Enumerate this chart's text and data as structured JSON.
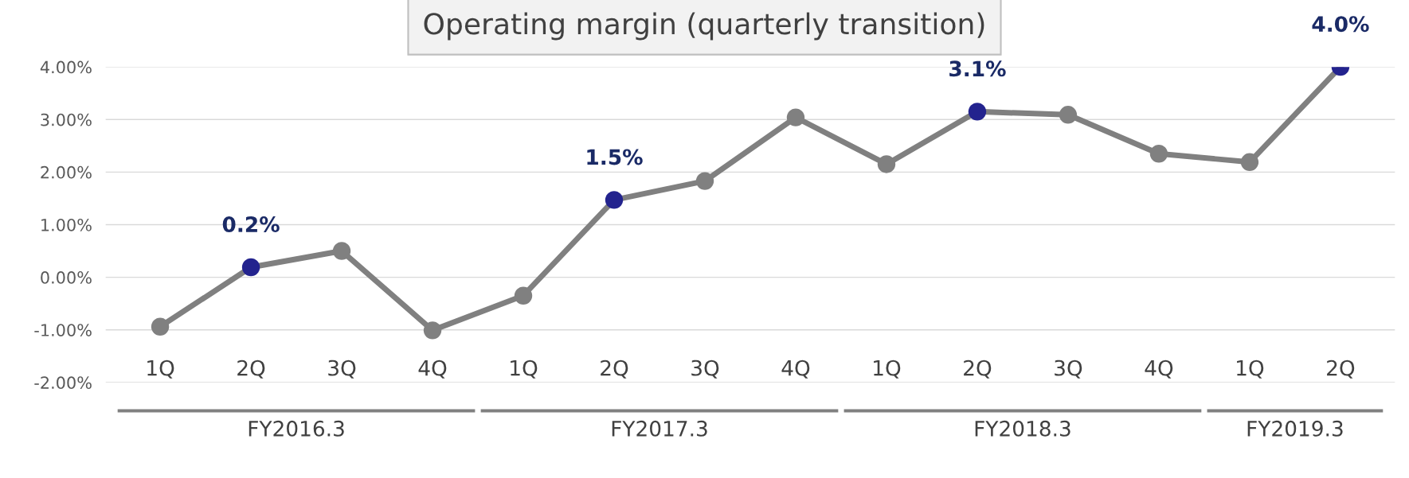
{
  "chart_data": {
    "type": "line",
    "title": "Operating margin (quarterly transition)",
    "categories": [
      "1Q",
      "2Q",
      "3Q",
      "4Q",
      "1Q",
      "2Q",
      "3Q",
      "4Q",
      "1Q",
      "2Q",
      "3Q",
      "4Q",
      "1Q",
      "2Q"
    ],
    "series": [
      {
        "color": "#808080",
        "values": [
          -0.94,
          0.19,
          0.5,
          -1.01,
          -0.35,
          1.47,
          1.83,
          3.04,
          2.15,
          3.15,
          3.09,
          2.35,
          2.19,
          4.0
        ],
        "colors": [
          "#808080",
          "#23238e",
          "#808080",
          "#808080",
          "#808080",
          "#23238e",
          "#808080",
          "#808080",
          "#808080",
          "#23238e",
          "#808080",
          "#808080",
          "#808080",
          "#23238e"
        ],
        "value_labels": [
          null,
          "0.2%",
          null,
          null,
          null,
          "1.5%",
          null,
          null,
          null,
          "3.1%",
          null,
          null,
          null,
          "4.0%"
        ]
      }
    ],
    "ylim": [
      -2,
      4
    ],
    "yticks": [
      {
        "value": -2,
        "label": "-2.00%"
      },
      {
        "value": -1,
        "label": "-1.00%"
      },
      {
        "value": 0,
        "label": "0.00%"
      },
      {
        "value": 1,
        "label": "1.00%"
      },
      {
        "value": 2,
        "label": "2.00%"
      },
      {
        "value": 3,
        "label": "3.00%"
      },
      {
        "value": 4,
        "label": "4.00%"
      }
    ],
    "annotations": [
      "FY2016.3",
      "FY2017.3",
      "FY2018.3",
      "FY2019.3"
    ],
    "grid": "y",
    "marker": "circle",
    "line_style": "solid",
    "legend": false
  }
}
